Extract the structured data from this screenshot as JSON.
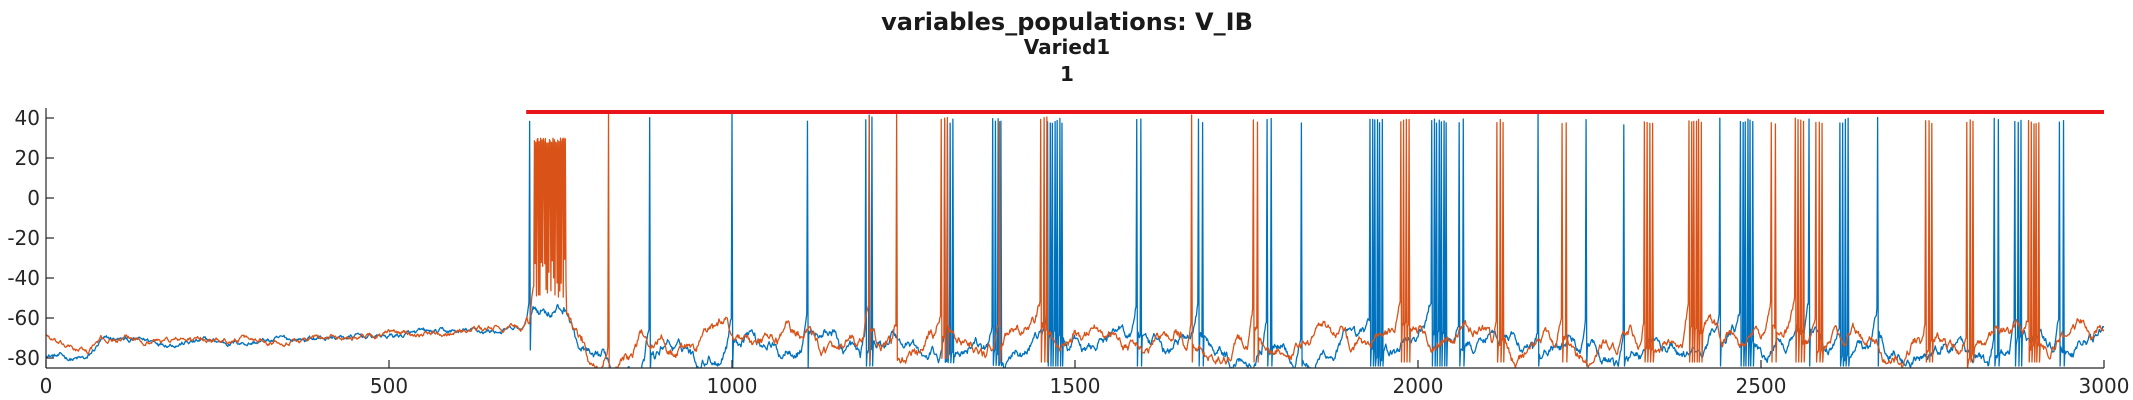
{
  "chart_data": {
    "type": "line",
    "title": "variables_populations: V_IB",
    "subtitle_lines": [
      "Varied1",
      "1"
    ],
    "xlabel": "",
    "ylabel": "",
    "xlim": [
      0,
      3000
    ],
    "ylim": [
      -85,
      45
    ],
    "x_ticks": [
      0,
      500,
      1000,
      1500,
      2000,
      2500,
      3000
    ],
    "y_ticks": [
      40,
      20,
      0,
      -20,
      -40,
      -60,
      -80
    ],
    "grid": false,
    "legend": "none",
    "series": [
      {
        "color": "#0072BD",
        "baseline": [
          [
            0,
            -78
          ],
          [
            30,
            -80
          ],
          [
            60,
            -81
          ],
          [
            80,
            -72
          ],
          [
            100,
            -71
          ],
          [
            200,
            -72
          ],
          [
            300,
            -72
          ],
          [
            400,
            -70
          ],
          [
            500,
            -69
          ],
          [
            600,
            -67
          ],
          [
            700,
            -66
          ],
          [
            705,
            -66
          ],
          [
            710,
            -55
          ],
          [
            760,
            -56
          ],
          [
            770,
            -67
          ],
          [
            780,
            -78
          ],
          [
            800,
            -84
          ],
          [
            850,
            -78
          ],
          [
            900,
            -76
          ],
          [
            1000,
            -75
          ],
          [
            1100,
            -75
          ],
          [
            1200,
            -74
          ],
          [
            1300,
            -72
          ],
          [
            1400,
            -74
          ],
          [
            1500,
            -74
          ],
          [
            1600,
            -74
          ],
          [
            1700,
            -74
          ],
          [
            1800,
            -74
          ],
          [
            1900,
            -74
          ],
          [
            2000,
            -74
          ],
          [
            2100,
            -74
          ],
          [
            2200,
            -74
          ],
          [
            2300,
            -74
          ],
          [
            2400,
            -74
          ],
          [
            2500,
            -74
          ],
          [
            2600,
            -74
          ],
          [
            2700,
            -74
          ],
          [
            2800,
            -74
          ],
          [
            2900,
            -74
          ],
          [
            3000,
            -74
          ]
        ],
        "spikes": [
          {
            "t": 705,
            "n": 1,
            "peak": 40
          },
          {
            "t": 880,
            "n": 1,
            "peak": 43
          },
          {
            "t": 1000,
            "n": 1,
            "peak": 43
          },
          {
            "t": 1110,
            "n": 1,
            "peak": 40
          },
          {
            "t": 1195,
            "n": 3,
            "peak": 42
          },
          {
            "t": 1310,
            "n": 4,
            "peak": 40
          },
          {
            "t": 1380,
            "n": 4,
            "peak": 40
          },
          {
            "t": 1460,
            "n": 7,
            "peak": 40
          },
          {
            "t": 1590,
            "n": 2,
            "peak": 40
          },
          {
            "t": 1680,
            "n": 2,
            "peak": 40
          },
          {
            "t": 1780,
            "n": 2,
            "peak": 40
          },
          {
            "t": 1830,
            "n": 1,
            "peak": 40
          },
          {
            "t": 1930,
            "n": 6,
            "peak": 40
          },
          {
            "t": 2020,
            "n": 7,
            "peak": 40
          },
          {
            "t": 2060,
            "n": 2,
            "peak": 40
          },
          {
            "t": 2175,
            "n": 1,
            "peak": 43
          },
          {
            "t": 2245,
            "n": 1,
            "peak": 40
          },
          {
            "t": 2300,
            "n": 1,
            "peak": 38
          },
          {
            "t": 2440,
            "n": 1,
            "peak": 40
          },
          {
            "t": 2470,
            "n": 6,
            "peak": 40
          },
          {
            "t": 2570,
            "n": 1,
            "peak": 40
          },
          {
            "t": 2615,
            "n": 4,
            "peak": 40
          },
          {
            "t": 2670,
            "n": 1,
            "peak": 43
          },
          {
            "t": 2840,
            "n": 2,
            "peak": 40
          },
          {
            "t": 2870,
            "n": 3,
            "peak": 40
          },
          {
            "t": 2935,
            "n": 2,
            "peak": 40
          }
        ]
      },
      {
        "color": "#D95319",
        "baseline": [
          [
            0,
            -68
          ],
          [
            20,
            -74
          ],
          [
            60,
            -77
          ],
          [
            80,
            -71
          ],
          [
            100,
            -71
          ],
          [
            200,
            -71
          ],
          [
            300,
            -71
          ],
          [
            400,
            -70
          ],
          [
            500,
            -68
          ],
          [
            600,
            -66
          ],
          [
            700,
            -65
          ],
          [
            705,
            -65
          ],
          [
            710,
            -55
          ],
          [
            760,
            -56
          ],
          [
            770,
            -65
          ],
          [
            780,
            -74
          ],
          [
            800,
            -81
          ],
          [
            850,
            -76
          ],
          [
            900,
            -73
          ],
          [
            1000,
            -73
          ],
          [
            1100,
            -72
          ],
          [
            1200,
            -72
          ],
          [
            1300,
            -70
          ],
          [
            1400,
            -72
          ],
          [
            1500,
            -72
          ],
          [
            1600,
            -72
          ],
          [
            1700,
            -72
          ],
          [
            1800,
            -72
          ],
          [
            1900,
            -72
          ],
          [
            2000,
            -72
          ],
          [
            2100,
            -72
          ],
          [
            2200,
            -72
          ],
          [
            2300,
            -72
          ],
          [
            2400,
            -72
          ],
          [
            2500,
            -72
          ],
          [
            2600,
            -72
          ],
          [
            2700,
            -72
          ],
          [
            2800,
            -72
          ],
          [
            2900,
            -72
          ],
          [
            3000,
            -72
          ]
        ],
        "spikes": [
          {
            "t": 712,
            "n": 26,
            "peak": 30,
            "span": 45
          },
          {
            "t": 820,
            "n": 1,
            "peak": 43
          },
          {
            "t": 1200,
            "n": 1,
            "peak": 43
          },
          {
            "t": 1240,
            "n": 1,
            "peak": 43
          },
          {
            "t": 1305,
            "n": 3,
            "peak": 42
          },
          {
            "t": 1390,
            "n": 1,
            "peak": 40
          },
          {
            "t": 1450,
            "n": 3,
            "peak": 42
          },
          {
            "t": 1670,
            "n": 1,
            "peak": 43
          },
          {
            "t": 1760,
            "n": 2,
            "peak": 40
          },
          {
            "t": 1975,
            "n": 4,
            "peak": 40
          },
          {
            "t": 2115,
            "n": 3,
            "peak": 40
          },
          {
            "t": 2210,
            "n": 2,
            "peak": 40
          },
          {
            "t": 2330,
            "n": 4,
            "peak": 40
          },
          {
            "t": 2395,
            "n": 6,
            "peak": 40
          },
          {
            "t": 2515,
            "n": 2,
            "peak": 40
          },
          {
            "t": 2550,
            "n": 4,
            "peak": 40
          },
          {
            "t": 2580,
            "n": 3,
            "peak": 40
          },
          {
            "t": 2740,
            "n": 3,
            "peak": 40
          },
          {
            "t": 2800,
            "n": 3,
            "peak": 40
          },
          {
            "t": 2890,
            "n": 5,
            "peak": 40
          }
        ]
      },
      {
        "color": "#E8141A",
        "points": [
          [
            700,
            43
          ],
          [
            3000,
            43
          ]
        ]
      }
    ]
  }
}
